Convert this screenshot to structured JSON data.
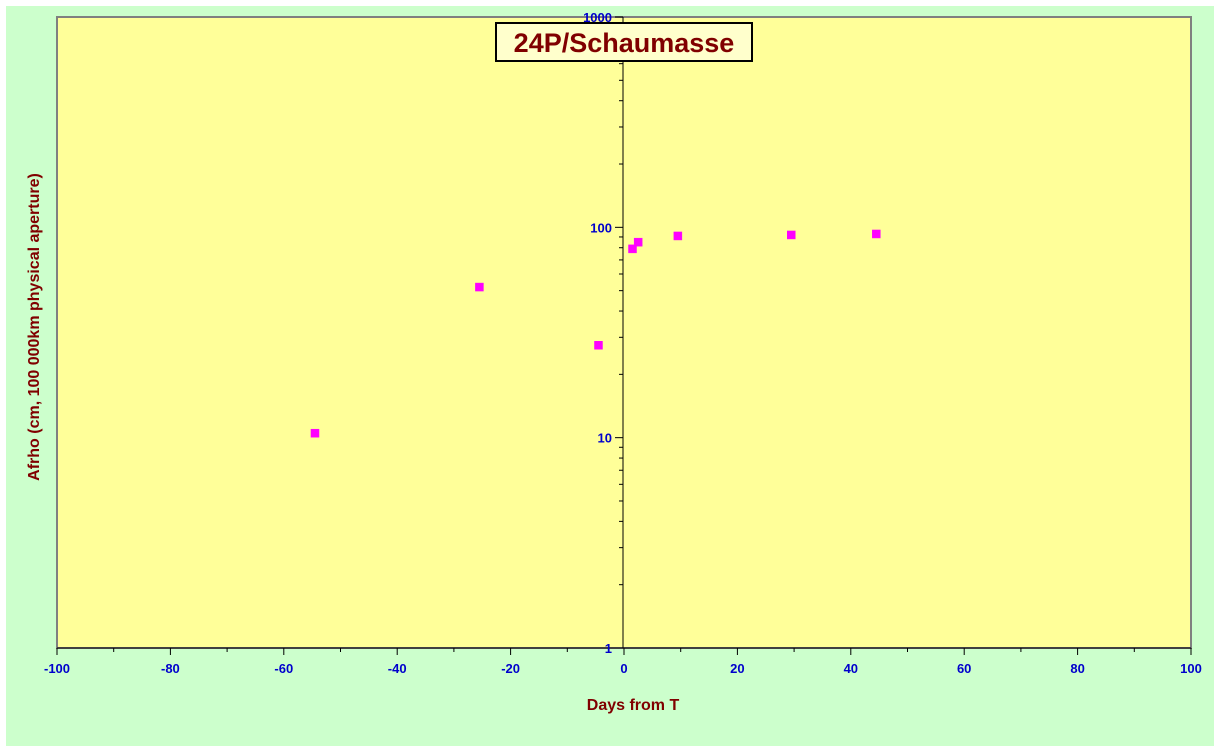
{
  "colors": {
    "outer_bg": "#ccffcc",
    "plot_bg": "#ffff99",
    "tick_label": "#0000cc",
    "axis_title": "#800000",
    "title_text": "#800000",
    "title_box_bg": "#ffffcc",
    "marker": "#ff00ff",
    "axis_line": "#000000",
    "plot_border": "#808080"
  },
  "chart_data": {
    "type": "scatter",
    "title": "24P/Schaumasse",
    "xlabel": "Days from T",
    "ylabel": "Afrho (cm, 100 000km physical aperture)",
    "xlim": [
      -100,
      100
    ],
    "ylim": [
      1,
      1000
    ],
    "y_scale": "log",
    "x_ticks": [
      "-100",
      "-80",
      "-60",
      "-40",
      "-20",
      "0",
      "20",
      "40",
      "60",
      "80",
      "100"
    ],
    "y_ticks": [
      "1",
      "10",
      "100",
      "1000"
    ],
    "grid": false,
    "legend": "none",
    "series": [
      {
        "marker": "square",
        "x": [
          -54.5,
          -25.5,
          -4.5,
          1.5,
          2.5,
          9.5,
          29.5,
          44.5
        ],
        "y": [
          10.5,
          52,
          27.5,
          79,
          85,
          91,
          92,
          93
        ]
      }
    ]
  }
}
